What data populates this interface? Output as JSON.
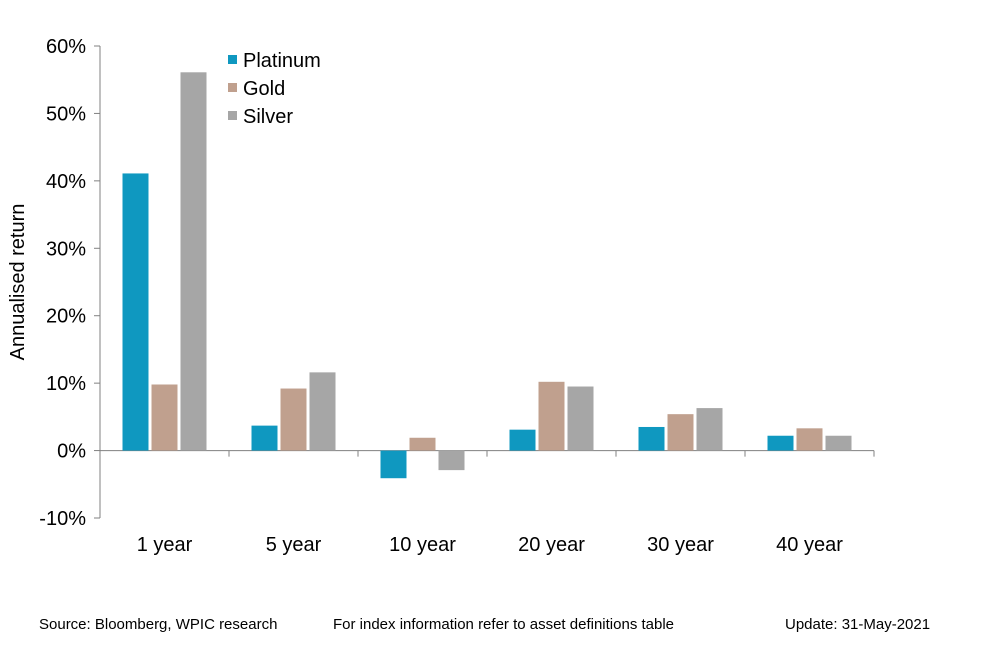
{
  "chart_data": {
    "type": "bar",
    "categories": [
      "1 year",
      "5 year",
      "10 year",
      "20 year",
      "30 year",
      "40 year"
    ],
    "series": [
      {
        "name": "Platinum",
        "color": "#0f98c0",
        "values": [
          41.1,
          3.7,
          -4.1,
          3.1,
          3.5,
          2.2
        ]
      },
      {
        "name": "Gold",
        "color": "#c0a08e",
        "values": [
          9.8,
          9.2,
          1.9,
          10.2,
          5.4,
          3.3
        ]
      },
      {
        "name": "Silver",
        "color": "#a6a6a6",
        "values": [
          56.1,
          11.6,
          -2.9,
          9.5,
          6.3,
          2.2
        ]
      }
    ],
    "ylabel": "Annualised return",
    "ylim": [
      -10,
      60
    ],
    "yticks": [
      -10,
      0,
      10,
      20,
      30,
      40,
      50,
      60
    ],
    "ytick_format": "percent",
    "grid": false,
    "legend_position": "top-left"
  },
  "footer": {
    "source": "Source: Bloomberg, WPIC research",
    "note": "For index information refer to asset definitions table",
    "update": "Update: 31-May-2021"
  }
}
